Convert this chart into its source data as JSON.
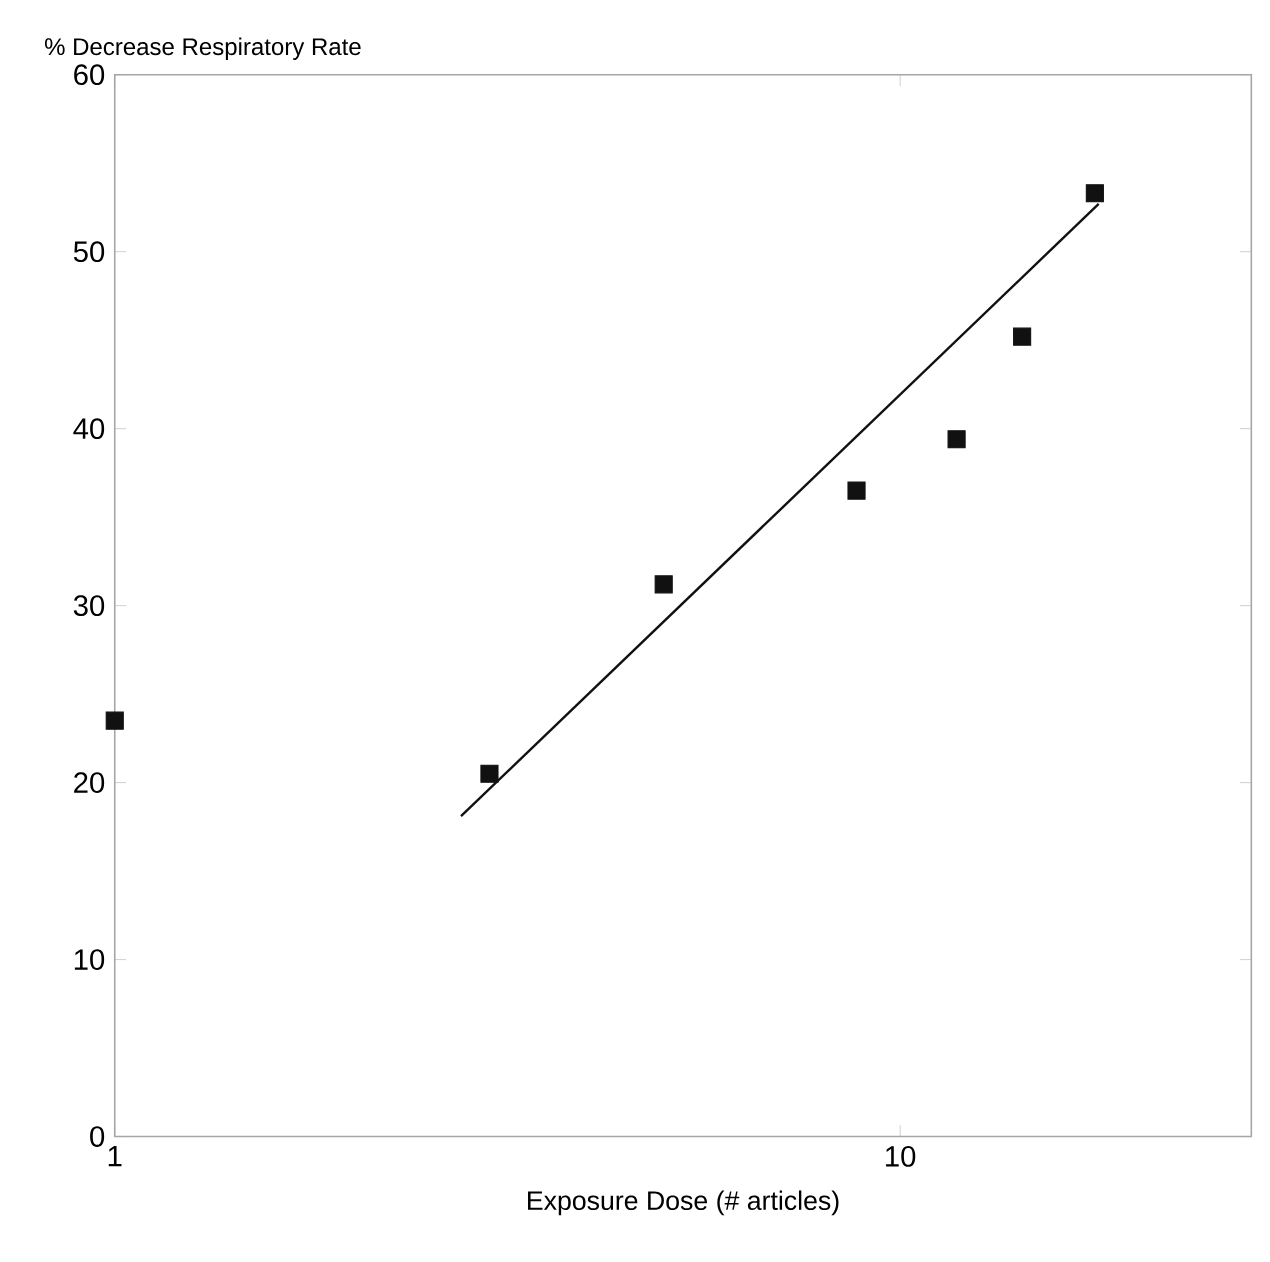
{
  "chart_data": {
    "type": "scatter",
    "xlabel": "Exposure Dose (# articles)",
    "ylabel": "% Decrease Respiratory Rate",
    "log": "x",
    "xlim": [
      1,
      28
    ],
    "ylim": [
      0,
      60
    ],
    "xticks": [
      1,
      10
    ],
    "yticks": [
      0,
      10,
      20,
      30,
      40,
      50,
      60
    ],
    "grid": false,
    "marker": "square",
    "series": [
      {
        "color": "#111111",
        "x": [
          1,
          3.0,
          5.0,
          8.8,
          11.8,
          14.3,
          17.7
        ],
        "values": [
          23.5,
          20.5,
          31.2,
          36.5,
          39.4,
          45.2,
          53.3
        ]
      },
      {
        "type": "line",
        "color": "#111111",
        "x": [
          2.76,
          17.9
        ],
        "values": [
          18.1,
          52.7
        ],
        "marker": "none",
        "line_style": "solid"
      }
    ]
  }
}
